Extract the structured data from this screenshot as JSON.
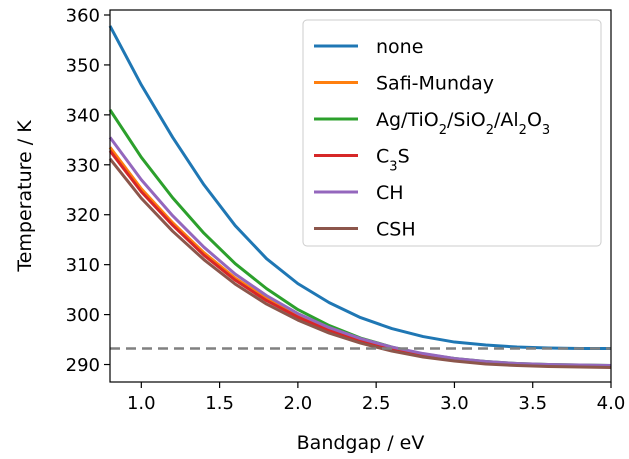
{
  "chart_data": {
    "type": "line",
    "xlabel": "Bandgap / eV",
    "ylabel": "Temperature / K",
    "xlim": [
      0.8,
      4.0
    ],
    "ylim": [
      286.5,
      361
    ],
    "xticks": [
      "1.0",
      "1.5",
      "2.0",
      "2.5",
      "3.0",
      "3.5",
      "4.0"
    ],
    "yticks": [
      "290",
      "300",
      "310",
      "320",
      "330",
      "340",
      "350",
      "360"
    ],
    "x": [
      0.8,
      1.0,
      1.2,
      1.4,
      1.6,
      1.8,
      2.0,
      2.2,
      2.4,
      2.6,
      2.8,
      3.0,
      3.2,
      3.4,
      3.6,
      3.8,
      4.0
    ],
    "series": [
      {
        "name": "none",
        "color": "#1f77b4",
        "values": [
          357.8,
          346.0,
          335.5,
          326.0,
          317.8,
          311.2,
          306.2,
          302.4,
          299.4,
          297.2,
          295.6,
          294.5,
          293.9,
          293.5,
          293.3,
          293.2,
          293.2
        ]
      },
      {
        "name": "Safi-Munday",
        "color": "#ff7f0e",
        "values": [
          333.5,
          325.2,
          318.4,
          312.4,
          307.3,
          303.2,
          299.8,
          297.1,
          295.0,
          293.3,
          292.0,
          291.1,
          290.5,
          290.1,
          289.9,
          289.8,
          289.7
        ]
      },
      {
        "name": "Ag/TiO₂/SiO₂/Al₂O₃",
        "color": "#2ca02c",
        "values": [
          341.0,
          331.5,
          323.4,
          316.3,
          310.2,
          305.2,
          301.0,
          297.8,
          295.3,
          293.5,
          292.1,
          291.2,
          290.6,
          290.2,
          290.0,
          289.9,
          289.8
        ]
      },
      {
        "name": "C₃S",
        "color": "#d62728",
        "values": [
          332.8,
          324.6,
          317.9,
          311.9,
          306.9,
          302.8,
          299.5,
          296.8,
          294.7,
          293.0,
          291.8,
          290.9,
          290.3,
          289.9,
          289.7,
          289.6,
          289.5
        ]
      },
      {
        "name": "CH",
        "color": "#9467bd",
        "values": [
          335.5,
          327.0,
          319.8,
          313.5,
          308.1,
          303.8,
          300.2,
          297.4,
          295.2,
          293.5,
          292.2,
          291.2,
          290.6,
          290.2,
          290.0,
          289.9,
          289.8
        ]
      },
      {
        "name": "CSH",
        "color": "#8c564b",
        "values": [
          331.2,
          323.3,
          316.7,
          311.0,
          306.1,
          302.1,
          298.9,
          296.3,
          294.3,
          292.7,
          291.5,
          290.7,
          290.1,
          289.8,
          289.6,
          289.5,
          289.4
        ]
      }
    ],
    "reference_line": {
      "y": 293.2,
      "color": "#808080",
      "style": "dashed"
    },
    "legend": {
      "placement": "top-right",
      "entries": [
        {
          "color": "#1f77b4",
          "parts": [
            {
              "t": "none"
            }
          ]
        },
        {
          "color": "#ff7f0e",
          "parts": [
            {
              "t": "Safi-Munday"
            }
          ]
        },
        {
          "color": "#2ca02c",
          "parts": [
            {
              "t": "Ag/TiO"
            },
            {
              "t": "2",
              "sub": true
            },
            {
              "t": "/SiO"
            },
            {
              "t": "2",
              "sub": true
            },
            {
              "t": "/Al"
            },
            {
              "t": "2",
              "sub": true
            },
            {
              "t": "O"
            },
            {
              "t": "3",
              "sub": true
            }
          ]
        },
        {
          "color": "#d62728",
          "parts": [
            {
              "t": "C"
            },
            {
              "t": "3",
              "sub": true
            },
            {
              "t": "S"
            }
          ]
        },
        {
          "color": "#9467bd",
          "parts": [
            {
              "t": "CH"
            }
          ]
        },
        {
          "color": "#8c564b",
          "parts": [
            {
              "t": "CSH"
            }
          ]
        }
      ]
    }
  }
}
